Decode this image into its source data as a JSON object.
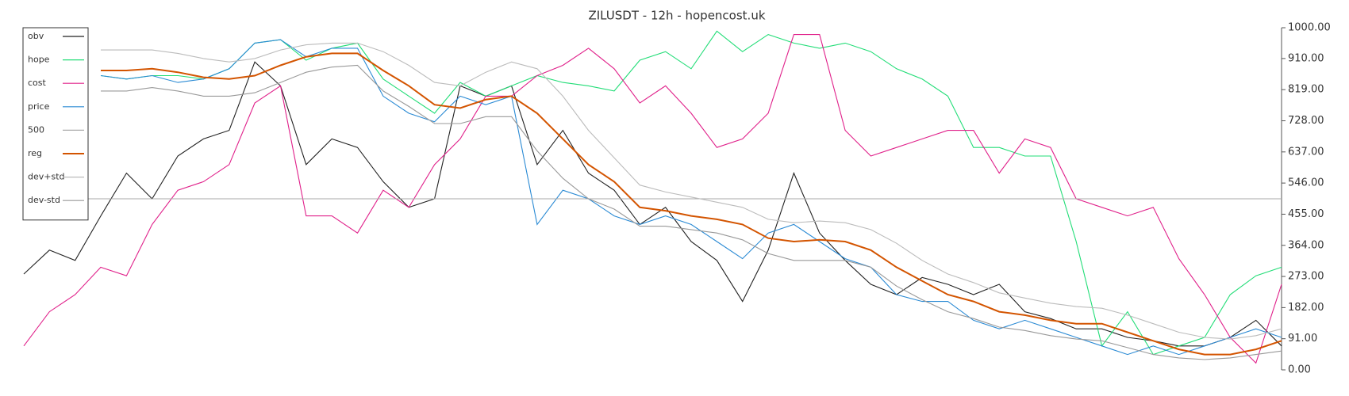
{
  "chart_data": {
    "type": "line",
    "title": "ZILUSDT - 12h - hopencost.uk",
    "ylim": [
      0,
      1000
    ],
    "yticks": [
      {
        "value": 0,
        "label": "0.00"
      },
      {
        "value": 91,
        "label": "91.00"
      },
      {
        "value": 182,
        "label": "182.00"
      },
      {
        "value": 273,
        "label": "273.00"
      },
      {
        "value": 364,
        "label": "364.00"
      },
      {
        "value": 455,
        "label": "455.00"
      },
      {
        "value": 546,
        "label": "546.00"
      },
      {
        "value": 637,
        "label": "637.00"
      },
      {
        "value": 728,
        "label": "728.00"
      },
      {
        "value": 819,
        "label": "819.00"
      },
      {
        "value": 910,
        "label": "910.00"
      },
      {
        "value": 1000,
        "label": "1000.00"
      }
    ],
    "legend": "upper left",
    "series": [
      {
        "name": "obv",
        "color": "#222222",
        "values": [
          280,
          350,
          320,
          450,
          575,
          500,
          625,
          675,
          700,
          900,
          830,
          600,
          675,
          650,
          550,
          475,
          500,
          830,
          800,
          830,
          600,
          700,
          575,
          525,
          425,
          475,
          375,
          320,
          200,
          350,
          575,
          400,
          320,
          250,
          220,
          270,
          250,
          220,
          250,
          170,
          150,
          120,
          120,
          95,
          85,
          70,
          70,
          95,
          145,
          70
        ]
      },
      {
        "name": "hope",
        "color": "#22dd77",
        "values": [
          null,
          null,
          null,
          860,
          850,
          860,
          860,
          850,
          880,
          955,
          965,
          905,
          940,
          955,
          850,
          800,
          750,
          840,
          800,
          830,
          860,
          840,
          830,
          815,
          905,
          930,
          880,
          990,
          930,
          980,
          955,
          940,
          955,
          930,
          880,
          850,
          800,
          650,
          650,
          625,
          625,
          375,
          70,
          170,
          45,
          70,
          95,
          220,
          275,
          300
        ]
      },
      {
        "name": "cost",
        "color": "#e0208a",
        "values": [
          70,
          170,
          220,
          300,
          275,
          425,
          525,
          550,
          600,
          780,
          830,
          450,
          450,
          400,
          525,
          475,
          600,
          675,
          800,
          800,
          860,
          890,
          940,
          880,
          780,
          830,
          750,
          650,
          675,
          750,
          980,
          980,
          700,
          625,
          650,
          675,
          700,
          700,
          575,
          675,
          650,
          500,
          475,
          450,
          475,
          325,
          220,
          95,
          20,
          250
        ]
      },
      {
        "name": "price",
        "color": "#2a8ad4",
        "values": [
          null,
          null,
          null,
          860,
          850,
          860,
          840,
          850,
          880,
          955,
          965,
          915,
          940,
          940,
          800,
          750,
          725,
          800,
          775,
          800,
          425,
          525,
          500,
          450,
          425,
          450,
          425,
          375,
          325,
          400,
          425,
          375,
          325,
          300,
          220,
          200,
          200,
          145,
          120,
          145,
          120,
          95,
          70,
          45,
          70,
          45,
          70,
          95,
          120,
          95
        ]
      },
      {
        "name": "500",
        "color": "#aaaaaa",
        "values": [
          500,
          500,
          500,
          500,
          500,
          500,
          500,
          500,
          500,
          500,
          500,
          500,
          500,
          500,
          500,
          500,
          500,
          500,
          500,
          500,
          500,
          500,
          500,
          500,
          500,
          500,
          500,
          500,
          500,
          500,
          500,
          500,
          500,
          500,
          500,
          500,
          500,
          500,
          500,
          500,
          500,
          500,
          500,
          500,
          500,
          500,
          500,
          500,
          500,
          500
        ]
      },
      {
        "name": "reg",
        "color": "#d35400",
        "values": [
          null,
          null,
          null,
          875,
          875,
          880,
          870,
          855,
          850,
          860,
          890,
          915,
          925,
          925,
          875,
          830,
          775,
          765,
          790,
          800,
          750,
          675,
          600,
          550,
          475,
          465,
          450,
          440,
          425,
          385,
          375,
          380,
          375,
          350,
          300,
          260,
          220,
          200,
          170,
          160,
          145,
          135,
          135,
          110,
          85,
          60,
          45,
          45,
          60,
          85
        ]
      },
      {
        "name": "dev+std",
        "color": "#bbbbbb",
        "values": [
          null,
          null,
          null,
          935,
          935,
          935,
          925,
          910,
          900,
          910,
          935,
          950,
          955,
          955,
          930,
          890,
          840,
          830,
          870,
          900,
          880,
          800,
          700,
          620,
          540,
          520,
          505,
          490,
          475,
          440,
          430,
          435,
          430,
          410,
          370,
          320,
          280,
          255,
          225,
          210,
          195,
          185,
          180,
          160,
          135,
          110,
          95,
          90,
          100,
          120
        ]
      },
      {
        "name": "dev-std",
        "color": "#999999",
        "values": [
          null,
          null,
          null,
          815,
          815,
          825,
          815,
          800,
          800,
          810,
          840,
          870,
          885,
          890,
          815,
          770,
          720,
          720,
          740,
          740,
          640,
          560,
          500,
          470,
          420,
          420,
          410,
          400,
          380,
          340,
          320,
          320,
          320,
          300,
          245,
          205,
          170,
          150,
          125,
          115,
          100,
          90,
          85,
          65,
          45,
          35,
          30,
          35,
          45,
          55
        ]
      }
    ]
  }
}
